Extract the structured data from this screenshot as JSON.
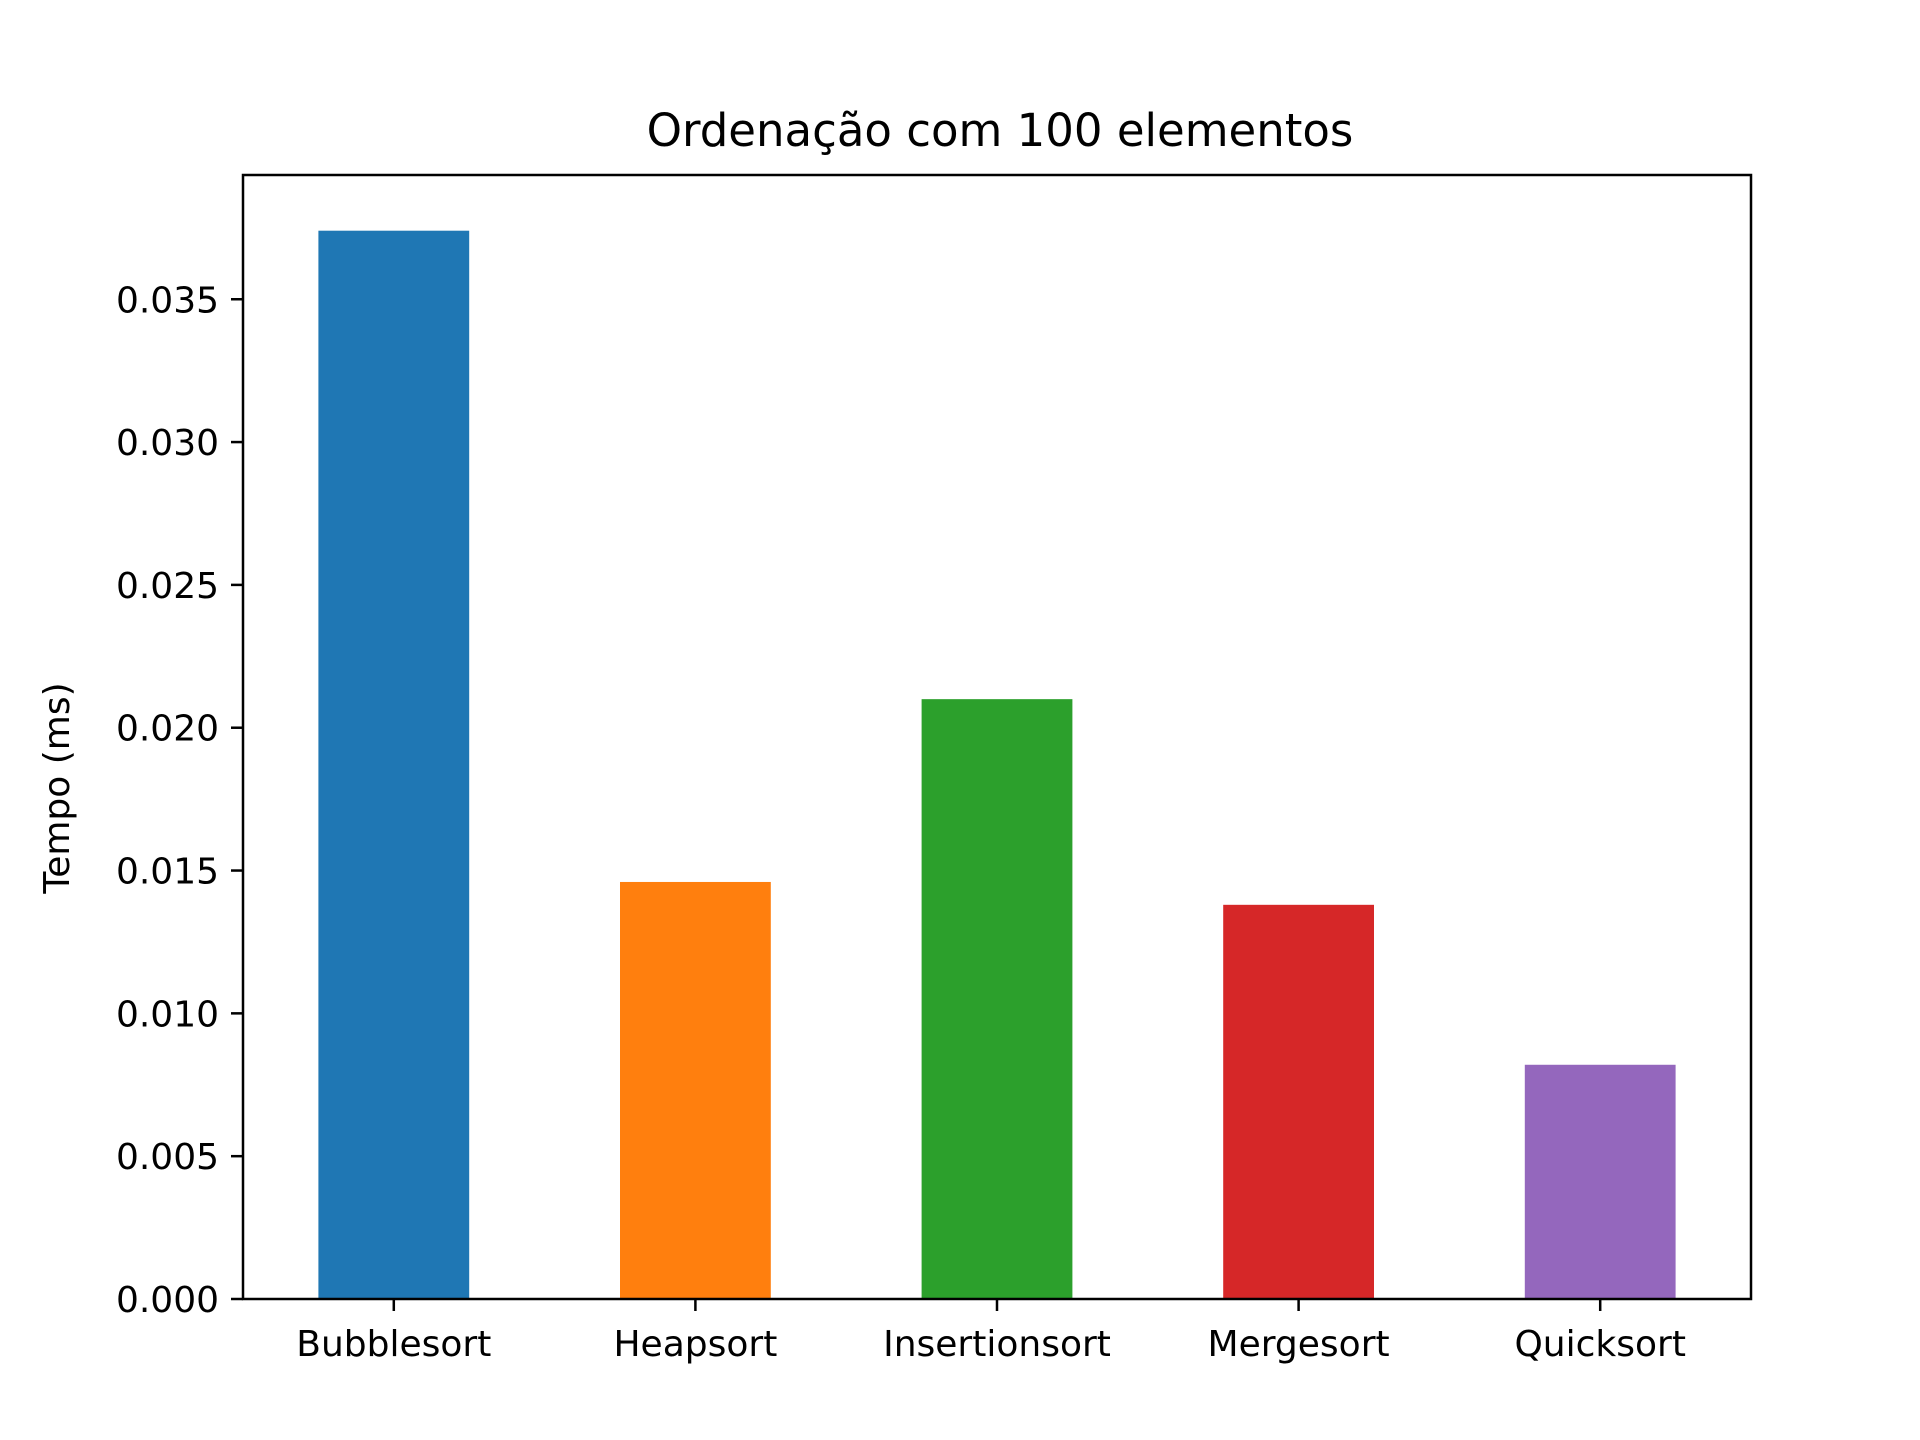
{
  "chart_data": {
    "type": "bar",
    "title": "Ordenação com 100 elementos",
    "xlabel": "",
    "ylabel": "Tempo (ms)",
    "categories": [
      "Bubblesort",
      "Heapsort",
      "Insertionsort",
      "Mergesort",
      "Quicksort"
    ],
    "values": [
      0.0374,
      0.0146,
      0.021,
      0.0138,
      0.0082
    ],
    "colors": [
      "#1f77b4",
      "#ff7f0e",
      "#2ca02c",
      "#d62728",
      "#9467bd"
    ],
    "ylim": [
      0,
      0.03935
    ],
    "yticks": [
      0.0,
      0.005,
      0.01,
      0.015,
      0.02,
      0.025,
      0.03,
      0.035
    ],
    "ytick_labels": [
      "0.000",
      "0.005",
      "0.010",
      "0.015",
      "0.020",
      "0.025",
      "0.030",
      "0.035"
    ],
    "grid": false,
    "legend": "none"
  }
}
